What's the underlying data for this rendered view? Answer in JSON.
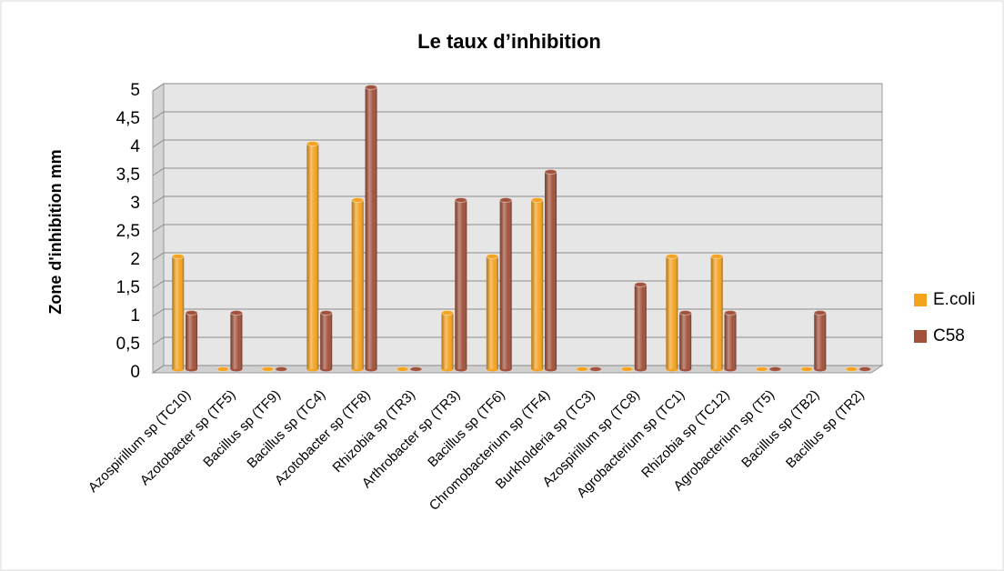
{
  "chart_data": {
    "type": "bar",
    "title": "Le taux d’inhibition",
    "y_label": "Zone d'inhibition mm",
    "categories": [
      "Azospirillum sp (TC10)",
      "Azotobacter sp (TF5)",
      "Bacillus sp (TF9)",
      "Bacillus sp (TC4)",
      "Azotobacter sp (TF8)",
      "Rhizobia sp (TR3)",
      "Arthrobacter sp (TR3)",
      "Bacillus sp (TF6)",
      "Chromobacterium sp (TF4)",
      "Burkholderia sp (TC3)",
      "Azospirillum sp (TC8)",
      "Agrobacterium sp (TC1)",
      "Rhizobia sp (TC12)",
      "Agrobacterium sp (T5)",
      "Bacillus sp (TB2)",
      "Bacillus sp (TR2)"
    ],
    "series": [
      {
        "name": "E.coli",
        "color": "#f5a21f",
        "values": [
          2,
          0,
          0,
          4,
          3,
          0,
          1,
          2,
          3,
          0,
          0,
          2,
          2,
          0,
          0,
          0
        ]
      },
      {
        "name": "C58",
        "color": "#a2513b",
        "values": [
          1,
          1,
          0,
          1,
          5,
          0,
          3,
          3,
          3.5,
          0,
          1.5,
          1,
          1,
          0,
          1,
          0
        ]
      }
    ],
    "ylim": [
      0,
      5
    ],
    "yticks": [
      0,
      {
        "value": 0.5,
        "label": "0,5"
      },
      1,
      {
        "value": 1.5,
        "label": "1,5"
      },
      2,
      {
        "value": 2.5,
        "label": "2,5"
      },
      3,
      {
        "value": 3.5,
        "label": "3,5"
      },
      4,
      {
        "value": 4.5,
        "label": "4,5"
      },
      5
    ],
    "grid": true,
    "legend": "right"
  }
}
